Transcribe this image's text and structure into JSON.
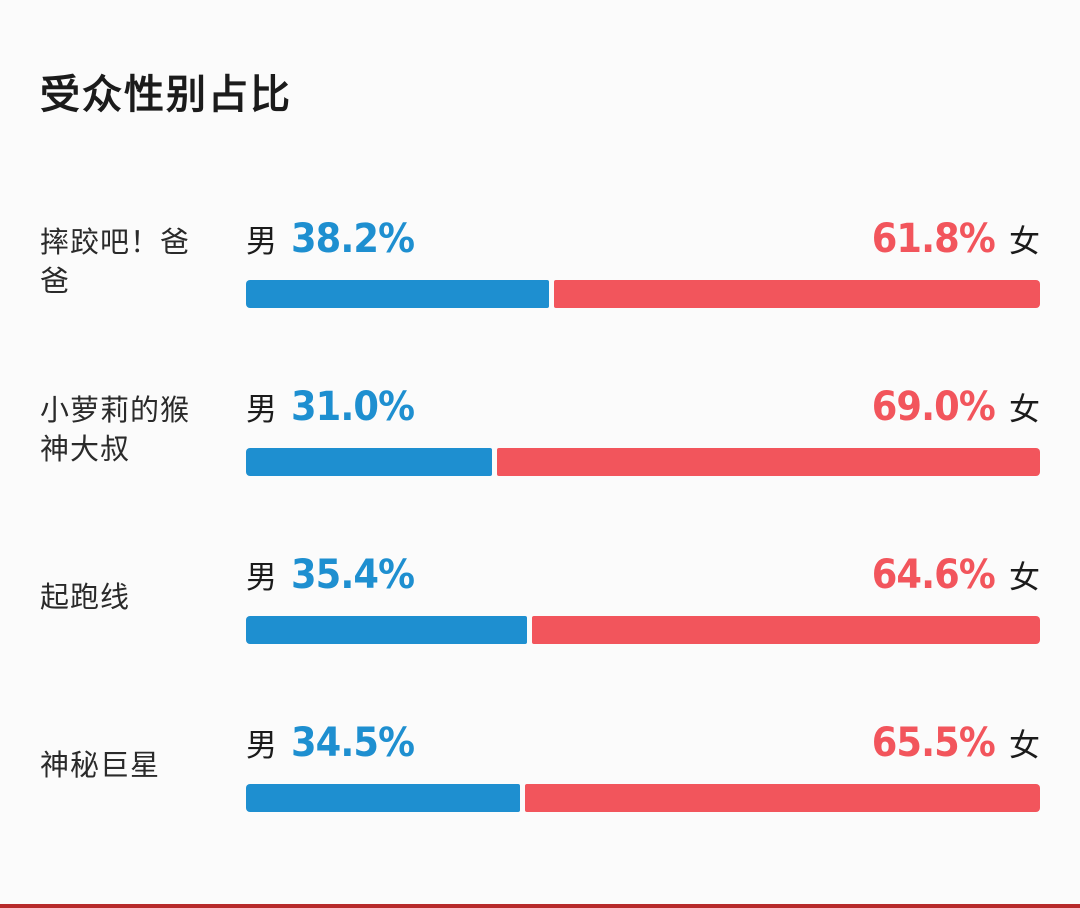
{
  "page": {
    "title": "受众性别占比"
  },
  "chart_data": {
    "type": "bar",
    "title": "受众性别占比",
    "orientation": "horizontal-stacked",
    "male_label": "男",
    "female_label": "女",
    "male_color": "#1e8fd0",
    "female_color": "#f2555c",
    "unit": "%",
    "rows": [
      {
        "name": "摔跤吧！爸爸",
        "male_pct": "38.2%",
        "female_pct": "61.8%",
        "male_value": 38.2,
        "female_value": 61.8
      },
      {
        "name": "小萝莉的猴神大叔",
        "male_pct": "31.0%",
        "female_pct": "69.0%",
        "male_value": 31.0,
        "female_value": 69.0
      },
      {
        "name": "起跑线",
        "male_pct": "35.4%",
        "female_pct": "64.6%",
        "male_value": 35.4,
        "female_value": 64.6
      },
      {
        "name": "神秘巨星",
        "male_pct": "34.5%",
        "female_pct": "65.5%",
        "male_value": 34.5,
        "female_value": 65.5
      }
    ]
  }
}
